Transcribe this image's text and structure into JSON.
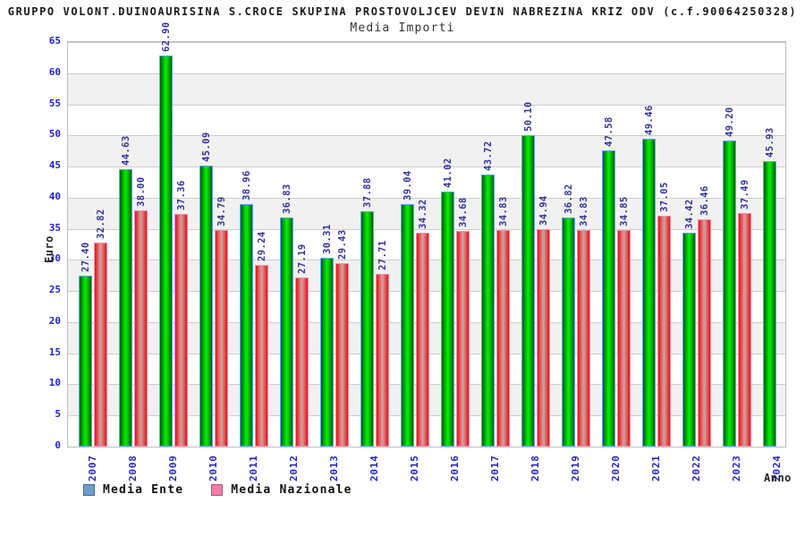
{
  "title": "GRUPPO VOLONT.DUINOAURISINA S.CROCE SKUPINA PROSTOVOLJCEV DEVIN NABREZINA KRIZ ODV (c.f.90064250328)",
  "subtitle": "Media Importi",
  "axes": {
    "y_label": "Euro",
    "x_label": "Anno",
    "y_min": 0,
    "y_max": 65,
    "y_tick_step": 5
  },
  "legend": {
    "items": [
      {
        "label": "Media Ente",
        "swatch_color": "#6d9dcb"
      },
      {
        "label": "Media Nazionale",
        "swatch_color": "#ef7fa7"
      }
    ]
  },
  "colors": {
    "tick_label": "#2222cc",
    "value_label": "#333399",
    "gridline": "#cccccc",
    "band_gray": "#f1f1f1",
    "green_edge": "#015c01",
    "green_center": "#00e800",
    "green_border": "#5aa9ff",
    "red_edge": "#e81010",
    "red_center": "#d49898",
    "red_border": "#ff8fb0"
  },
  "chart_data": {
    "type": "bar",
    "title": "Media Importi",
    "xlabel": "Anno",
    "ylabel": "Euro",
    "ylim": [
      0,
      65
    ],
    "ytick_step": 5,
    "grid": true,
    "legend_position": "bottom",
    "categories": [
      "2007",
      "2008",
      "2009",
      "2010",
      "2011",
      "2012",
      "2013",
      "2014",
      "2015",
      "2016",
      "2017",
      "2018",
      "2019",
      "2020",
      "2021",
      "2022",
      "2023",
      "2024"
    ],
    "series": [
      {
        "name": "Media Ente",
        "values": [
          27.4,
          44.63,
          62.9,
          45.09,
          38.96,
          36.83,
          30.31,
          37.88,
          39.04,
          41.02,
          43.72,
          50.1,
          36.82,
          47.58,
          49.46,
          34.42,
          49.2,
          45.93
        ]
      },
      {
        "name": "Media Nazionale",
        "values": [
          32.82,
          38.0,
          37.36,
          34.79,
          29.24,
          27.19,
          29.43,
          27.71,
          34.32,
          34.68,
          34.83,
          34.94,
          34.83,
          34.85,
          37.05,
          36.46,
          37.49,
          null
        ]
      }
    ]
  }
}
